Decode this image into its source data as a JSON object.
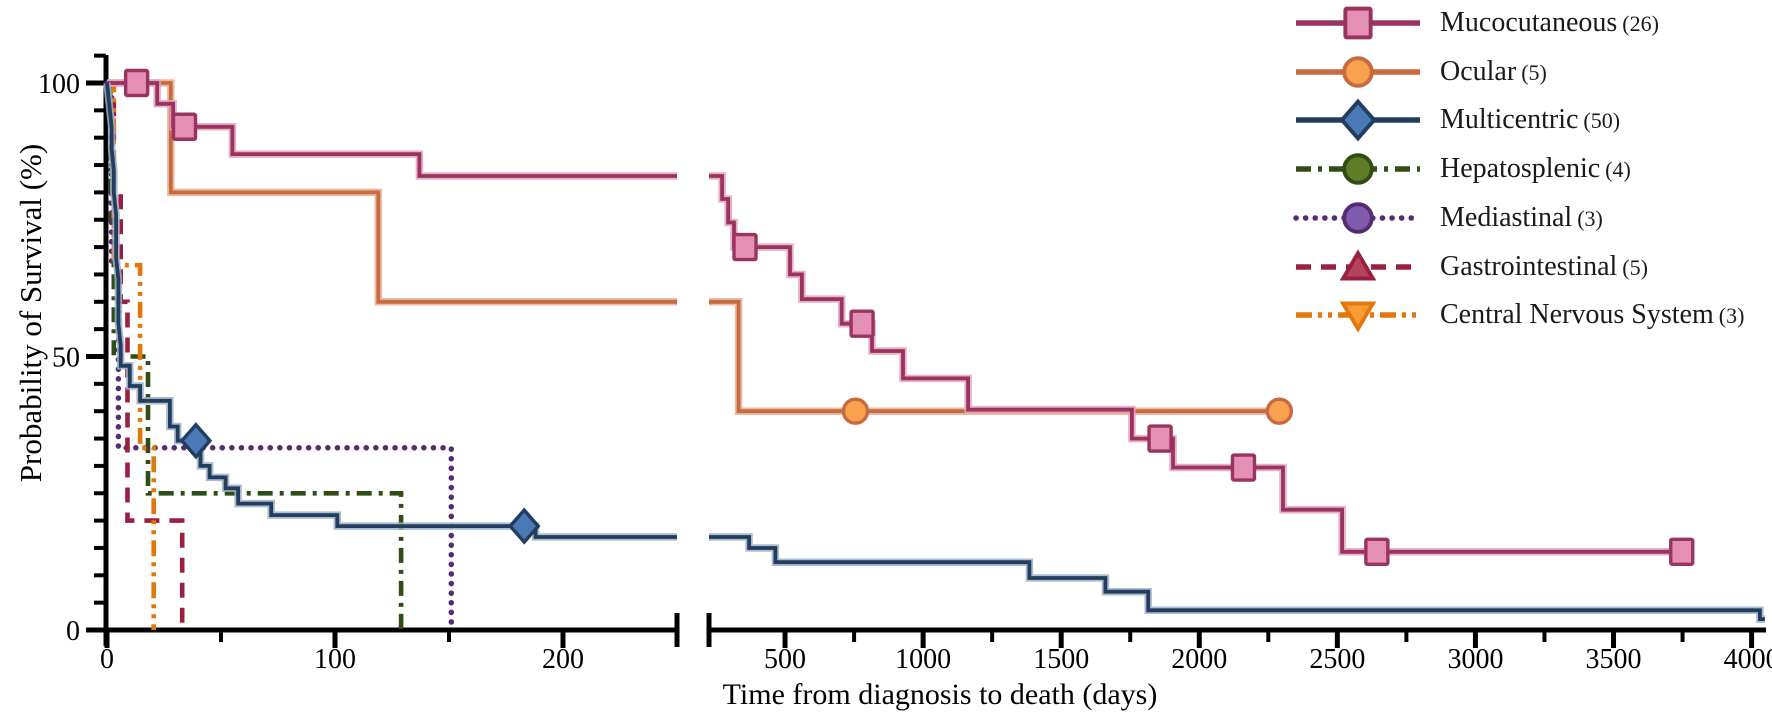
{
  "figure": {
    "y_axis_label": "Probability of Survival (%)",
    "x_axis_label": "Time from diagnosis to death (days)"
  },
  "axes": {
    "y": {
      "min": 0,
      "max": 100,
      "labeled_ticks": [
        0,
        50,
        100
      ],
      "minor_step": 5
    },
    "x_left": {
      "min": 0,
      "max": 250,
      "labeled_ticks": [
        0,
        100,
        200
      ],
      "minor_ticks": [
        50,
        150
      ]
    },
    "x_right": {
      "min": 250,
      "max": 4050,
      "labeled_ticks": [
        500,
        1000,
        1500,
        2000,
        2500,
        3000,
        3500,
        4000
      ],
      "minor_ticks": [
        250,
        750,
        1250,
        1750,
        2250,
        2750,
        3250,
        3750
      ]
    },
    "axis_break": true
  },
  "legend": {
    "items": [
      {
        "series": "mucocutaneous",
        "label": "Mucocutaneous",
        "count": "(26)"
      },
      {
        "series": "ocular",
        "label": "Ocular",
        "count": "(5)"
      },
      {
        "series": "multicentric",
        "label": "Multicentric",
        "count": "(50)"
      },
      {
        "series": "hepatosplenic",
        "label": "Hepatosplenic",
        "count": "(4)"
      },
      {
        "series": "mediastinal",
        "label": "Mediastinal",
        "count": "(3)"
      },
      {
        "series": "gastrointestinal",
        "label": "Gastrointestinal",
        "count": "(5)"
      },
      {
        "series": "central-nervous-system",
        "label": "Central Nervous System",
        "count": "(3)"
      }
    ]
  },
  "chart_data": {
    "type": "line",
    "subtype": "kaplan-meier-step",
    "title": "",
    "xlabel": "Time from diagnosis to death (days)",
    "ylabel": "Probability of Survival (%)",
    "x_break": [
      250,
      250
    ],
    "xlim_left": [
      0,
      250
    ],
    "xlim_right": [
      250,
      4050
    ],
    "ylim": [
      0,
      100
    ],
    "series": [
      {
        "name": "Hepatosplenic",
        "slug": "hepatosplenic",
        "n": 4,
        "color": "#2F4E16",
        "marker": {
          "shape": "circle",
          "fill": "#5E7D26"
        },
        "dash": "15 7 4 7",
        "points": [
          [
            0,
            100
          ],
          [
            1.5,
            100
          ],
          [
            1.5,
            75
          ],
          [
            3,
            75
          ],
          [
            3,
            50
          ],
          [
            18,
            50
          ],
          [
            18,
            25
          ],
          [
            129,
            25
          ],
          [
            129,
            0
          ]
        ],
        "censors": []
      },
      {
        "name": "Mediastinal",
        "slug": "mediastinal",
        "n": 3,
        "color": "#562B72",
        "marker": {
          "shape": "circle",
          "fill": "#7F5CAD"
        },
        "dash": "0.1 9.5",
        "linecap": "round",
        "points": [
          [
            0,
            100
          ],
          [
            2,
            100
          ],
          [
            2,
            66.7
          ],
          [
            5,
            66.7
          ],
          [
            5,
            33.3
          ],
          [
            151,
            33.3
          ],
          [
            151,
            0
          ]
        ],
        "censors": []
      },
      {
        "name": "Gastrointestinal",
        "slug": "gastrointestinal",
        "n": 5,
        "color": "#9B2040",
        "marker": {
          "shape": "triangle-up",
          "fill": "#B34460"
        },
        "dash": "15 10",
        "points": [
          [
            0,
            100
          ],
          [
            3,
            100
          ],
          [
            3,
            80
          ],
          [
            6,
            80
          ],
          [
            6,
            60
          ],
          [
            9,
            60
          ],
          [
            9,
            20
          ],
          [
            33,
            20
          ],
          [
            33,
            0
          ]
        ],
        "censors": []
      },
      {
        "name": "Central Nervous System",
        "slug": "central-nervous-system",
        "n": 3,
        "color": "#E1770D",
        "marker": {
          "shape": "triangle-down",
          "fill": "#F79D33"
        },
        "dash": "16 6 4 6 4 6",
        "points": [
          [
            0,
            100
          ],
          [
            3,
            100
          ],
          [
            3,
            66.7
          ],
          [
            14.5,
            66.7
          ],
          [
            14.5,
            33.3
          ],
          [
            20.5,
            33.3
          ],
          [
            20.5,
            0
          ]
        ],
        "censors": []
      },
      {
        "name": "Ocular",
        "slug": "ocular",
        "n": 5,
        "color": "#C8693F",
        "halo": "#E8B093",
        "marker": {
          "shape": "circle",
          "fill": "#F8A14E"
        },
        "dash": null,
        "points": [
          [
            0,
            100
          ],
          [
            28,
            100
          ],
          [
            28,
            80
          ],
          [
            119,
            80
          ],
          [
            119,
            60
          ],
          [
            332,
            60
          ],
          [
            332,
            40
          ],
          [
            2290,
            40
          ]
        ],
        "censors": [
          [
            755,
            40
          ],
          [
            2290,
            40
          ]
        ]
      },
      {
        "name": "Mucocutaneous",
        "slug": "mucocutaneous",
        "n": 26,
        "color": "#9B3361",
        "halo": "#E3A3BE",
        "marker": {
          "shape": "square",
          "fill": "#E490B5"
        },
        "dash": null,
        "points": [
          [
            0,
            100
          ],
          [
            22,
            100
          ],
          [
            22,
            96.2
          ],
          [
            29,
            96.2
          ],
          [
            29,
            92
          ],
          [
            55,
            92
          ],
          [
            55,
            87
          ],
          [
            137,
            87
          ],
          [
            137,
            83
          ],
          [
            272,
            83
          ],
          [
            272,
            78.8
          ],
          [
            294,
            78.8
          ],
          [
            294,
            74.5
          ],
          [
            315,
            74.5
          ],
          [
            315,
            70
          ],
          [
            518,
            70
          ],
          [
            518,
            65
          ],
          [
            561,
            65
          ],
          [
            561,
            60.5
          ],
          [
            705,
            60.5
          ],
          [
            705,
            56
          ],
          [
            815,
            56
          ],
          [
            815,
            51
          ],
          [
            927,
            51
          ],
          [
            927,
            46
          ],
          [
            1163,
            46
          ],
          [
            1163,
            40.3
          ],
          [
            1756,
            40.3
          ],
          [
            1756,
            35
          ],
          [
            1905,
            35
          ],
          [
            1905,
            29.7
          ],
          [
            2303,
            29.7
          ],
          [
            2303,
            22
          ],
          [
            2517,
            22
          ],
          [
            2517,
            14.3
          ],
          [
            3750,
            14.3
          ]
        ],
        "censors": [
          [
            13,
            100
          ],
          [
            34,
            92
          ],
          [
            355,
            70
          ],
          [
            779,
            56
          ],
          [
            1858,
            35
          ],
          [
            2160,
            29.7
          ],
          [
            2643,
            14.3
          ],
          [
            3747,
            14.3
          ]
        ]
      },
      {
        "name": "Multicentric",
        "slug": "multicentric",
        "n": 50,
        "color": "#223E5F",
        "halo": "#9FB2C9",
        "marker": {
          "shape": "diamond",
          "fill": "#4A79B5"
        },
        "dash": null,
        "points": [
          [
            0,
            100
          ],
          [
            1,
            96
          ],
          [
            2,
            92
          ],
          [
            2,
            88
          ],
          [
            3,
            84
          ],
          [
            3,
            80
          ],
          [
            4,
            76
          ],
          [
            4,
            72
          ],
          [
            4,
            68
          ],
          [
            5,
            64
          ],
          [
            5,
            60
          ],
          [
            5,
            56
          ],
          [
            6,
            52
          ],
          [
            6,
            48.3
          ],
          [
            10,
            48.3
          ],
          [
            10,
            44.6
          ],
          [
            14.5,
            44.6
          ],
          [
            14.5,
            41.9
          ],
          [
            27.6,
            41.9
          ],
          [
            27.6,
            37.2
          ],
          [
            31,
            37.2
          ],
          [
            31,
            34.6
          ],
          [
            41,
            34.6
          ],
          [
            41,
            30
          ],
          [
            45,
            30
          ],
          [
            45,
            27.9
          ],
          [
            52,
            27.9
          ],
          [
            52,
            25.9
          ],
          [
            57.5,
            25.9
          ],
          [
            57.5,
            23.1
          ],
          [
            72,
            23.1
          ],
          [
            72,
            21
          ],
          [
            101,
            21
          ],
          [
            101,
            19
          ],
          [
            188,
            19
          ],
          [
            188,
            17
          ],
          [
            370,
            17
          ],
          [
            370,
            15
          ],
          [
            465,
            15
          ],
          [
            465,
            12.4
          ],
          [
            1385,
            12.4
          ],
          [
            1385,
            9.5
          ],
          [
            1660,
            9.5
          ],
          [
            1660,
            7
          ],
          [
            1815,
            7
          ],
          [
            1815,
            3.6
          ],
          [
            4030,
            3.6
          ],
          [
            4030,
            2
          ],
          [
            4048,
            2
          ]
        ],
        "censors": [
          [
            39,
            34.6
          ],
          [
            183,
            19
          ]
        ]
      }
    ]
  }
}
